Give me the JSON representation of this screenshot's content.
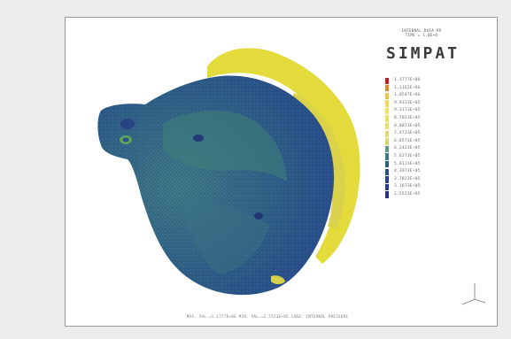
{
  "brand": {
    "header_line_1": "INTERNAL DATA PR",
    "header_line_2": "TIME = 1.0E+0",
    "title": "SIMPAT"
  },
  "legend": {
    "entries": [
      {
        "label": "1.1777E+06",
        "color": "#c42020"
      },
      {
        "label": "1.1162E+06",
        "color": "#e2862a"
      },
      {
        "label": "1.0547E+06",
        "color": "#efc33a"
      },
      {
        "label": "9.9323E+05",
        "color": "#f0dc4c"
      },
      {
        "label": "9.3173E+05",
        "color": "#efe25a"
      },
      {
        "label": "8.7023E+05",
        "color": "#e8e25e"
      },
      {
        "label": "8.0873E+05",
        "color": "#e4e064"
      },
      {
        "label": "7.4723E+05",
        "color": "#dedc6a"
      },
      {
        "label": "6.8573E+05",
        "color": "#d6d86a"
      },
      {
        "label": "6.2423E+05",
        "color": "#5d9a84"
      },
      {
        "label": "5.6273E+05",
        "color": "#3b7a8a"
      },
      {
        "label": "5.0123E+05",
        "color": "#2e5f8e"
      },
      {
        "label": "4.3973E+05",
        "color": "#2a4f94"
      },
      {
        "label": "3.7823E+05",
        "color": "#28449a"
      },
      {
        "label": "3.1673E+05",
        "color": "#253a98"
      },
      {
        "label": "2.5523E+05",
        "color": "#223394"
      }
    ]
  },
  "footer": {
    "caption": "MAX. VAL.=1.1777E+06 MIN. VAL.=2.5523E+05 LOAD: INTERNAL PRESSURE"
  },
  "colors": {
    "background": "#ececec",
    "body_blue": "#2a4f8e",
    "body_teal": "#3c7a84",
    "highlight_yellow": "#e6dc3a",
    "axis_gray": "#777777"
  },
  "icons": {
    "axis_triad": "coordinate-axes-icon"
  }
}
